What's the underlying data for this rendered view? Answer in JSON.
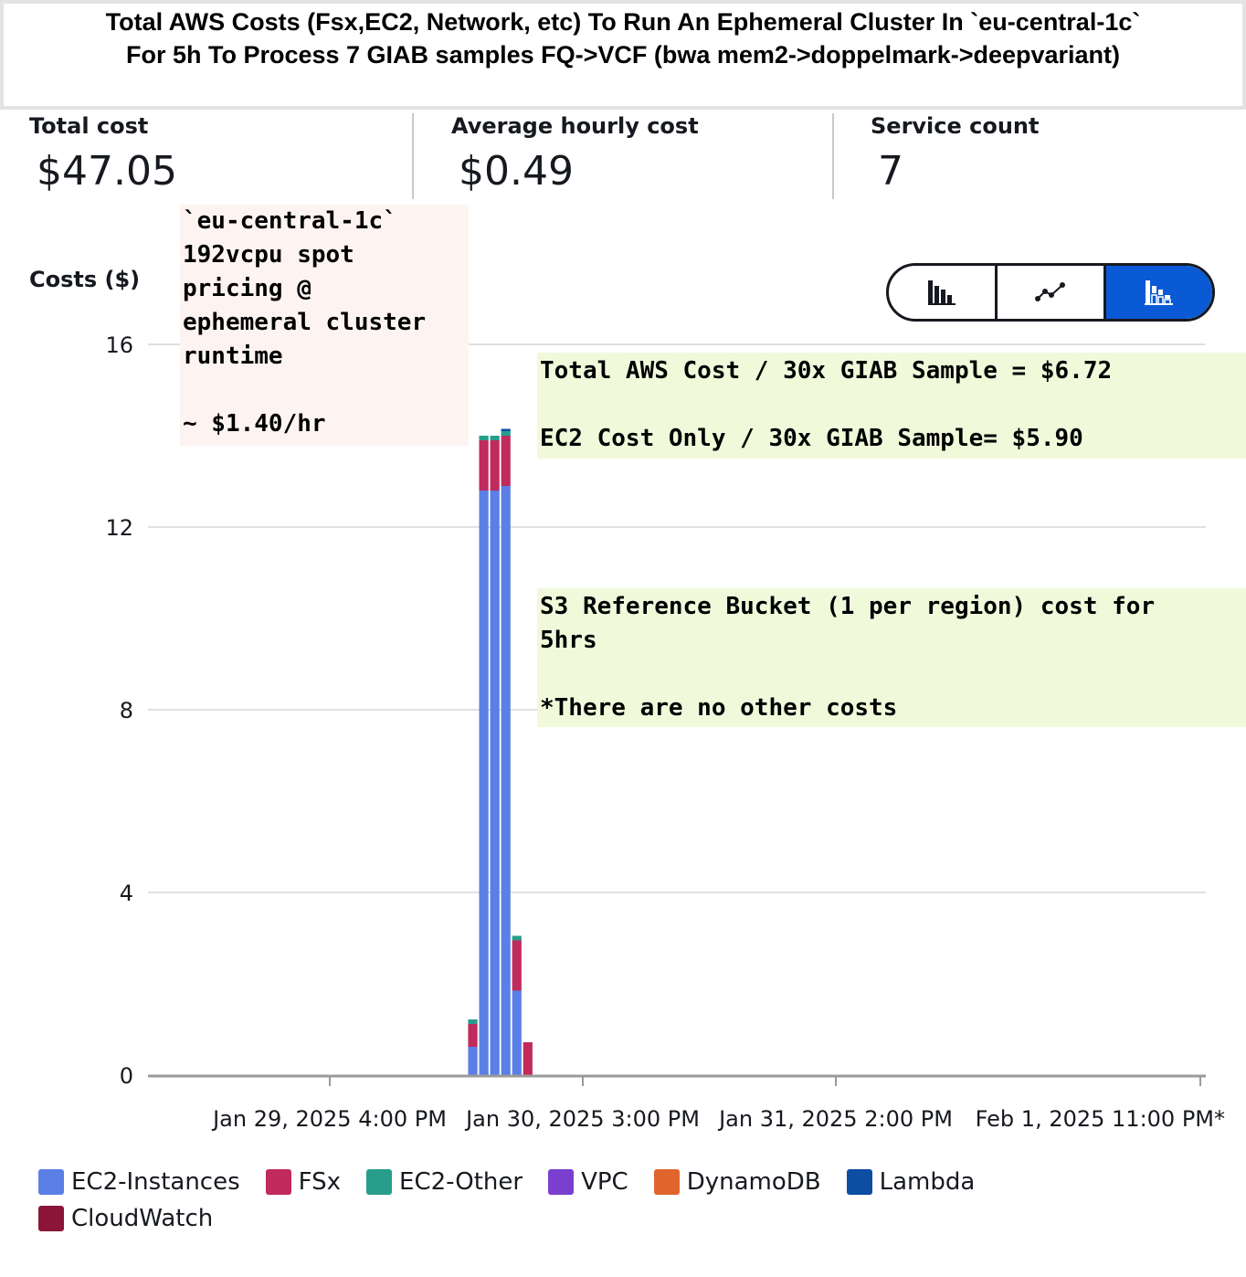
{
  "header": {
    "title_line1": "Total AWS Costs (Fsx,EC2, Network, etc) To Run An Ephemeral Cluster In `eu-central-1c`",
    "title_line2": "For 5h To Process 7 GIAB samples FQ->VCF (bwa mem2->doppelmark->deepvariant)"
  },
  "metrics": [
    {
      "label": "Total cost",
      "value": "$47.05"
    },
    {
      "label": "Average hourly cost",
      "value": "$0.49"
    },
    {
      "label": "Service count",
      "value": "7"
    }
  ],
  "annotations": {
    "pink": "`eu-central-1c`\n192vcpu spot\npricing @\nephemeral cluster\nruntime\n\n~ $1.40/hr",
    "green1": "Total AWS Cost / 30x GIAB Sample = $6.72\n\nEC2 Cost Only / 30x GIAB Sample= $5.90",
    "green2": "S3 Reference Bucket (1 per region) cost for\n5hrs\n\n*There are no other costs"
  },
  "view_toggle": {
    "options": [
      "bar-chart-icon",
      "line-chart-icon",
      "stacked-bar-chart-icon"
    ],
    "selected": "stacked-bar-chart-icon"
  },
  "chart_data": {
    "type": "bar",
    "stacked": true,
    "ylabel": "Costs ($)",
    "ylim": [
      0,
      16
    ],
    "yticks": [
      0,
      4,
      8,
      12,
      16
    ],
    "grid": true,
    "legend_position": "bottom",
    "xtick_labels": [
      "Jan 29, 2025 4:00 PM",
      "Jan 30, 2025 3:00 PM",
      "Jan 31, 2025 2:00 PM",
      "Feb 1, 2025 11:00 PM*"
    ],
    "x_hours_to_tick": [
      7,
      30,
      53,
      84
    ],
    "x_range_hours": [
      -10,
      86
    ],
    "bars_hour": [
      20,
      21,
      22,
      23,
      24,
      25
    ],
    "series": [
      {
        "name": "EC2-Instances",
        "color": "#5a7fe6",
        "values": [
          0.62,
          12.8,
          12.8,
          12.9,
          1.85,
          0
        ]
      },
      {
        "name": "FSx",
        "color": "#c02a5c",
        "values": [
          0.5,
          1.1,
          1.1,
          1.1,
          1.1,
          0.72
        ]
      },
      {
        "name": "EC2-Other",
        "color": "#299d8c",
        "values": [
          0.1,
          0.1,
          0.1,
          0.1,
          0.1,
          0
        ]
      },
      {
        "name": "VPC",
        "color": "#7b3fd0",
        "values": [
          0,
          0,
          0,
          0,
          0,
          0
        ]
      },
      {
        "name": "DynamoDB",
        "color": "#e0662d",
        "values": [
          0,
          0,
          0,
          0,
          0,
          0
        ]
      },
      {
        "name": "Lambda",
        "color": "#0b4ea2",
        "values": [
          0,
          0,
          0,
          0.05,
          0,
          0
        ]
      },
      {
        "name": "CloudWatch",
        "color": "#8a1538",
        "values": [
          0,
          0,
          0,
          0,
          0,
          0
        ]
      }
    ]
  }
}
